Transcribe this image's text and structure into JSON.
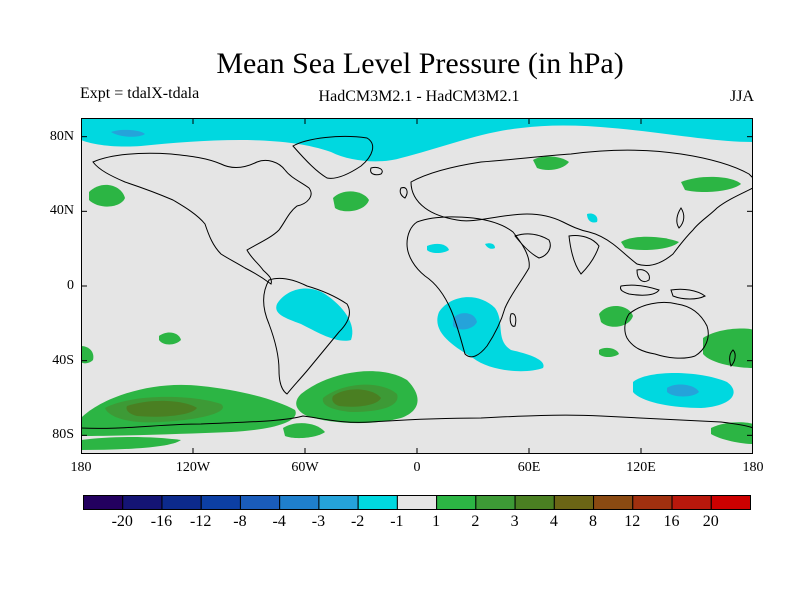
{
  "title": "Mean Sea Level Pressure (in hPa)",
  "expt_label": "Expt = tdalX-tdala",
  "model_label": "HadCM3M2.1 - HadCM3M2.1",
  "season_label": "JJA",
  "lat_ticks": [
    {
      "label": "80N",
      "lat": 80
    },
    {
      "label": "40N",
      "lat": 40
    },
    {
      "label": "0",
      "lat": 0
    },
    {
      "label": "40S",
      "lat": -40
    },
    {
      "label": "80S",
      "lat": -80
    }
  ],
  "lon_ticks": [
    {
      "label": "180",
      "lon": -180
    },
    {
      "label": "120W",
      "lon": -120
    },
    {
      "label": "60W",
      "lon": -60
    },
    {
      "label": "0",
      "lon": 0
    },
    {
      "label": "60E",
      "lon": 60
    },
    {
      "label": "120E",
      "lon": 120
    },
    {
      "label": "180",
      "lon": 180
    }
  ],
  "colorbar": {
    "colors": [
      "#23005f",
      "#141474",
      "#0c2a8c",
      "#0c3fa4",
      "#1a5cba",
      "#1f7fcc",
      "#25a3da",
      "#00d8e0",
      "#e5e5e5",
      "#2cb544",
      "#3d9a36",
      "#4a7f22",
      "#6b6515",
      "#8a4a12",
      "#a0300f",
      "#b8180c",
      "#cc0000"
    ],
    "labels": [
      "-20",
      "-16",
      "-12",
      "-8",
      "-4",
      "-3",
      "-2",
      "-1",
      "1",
      "2",
      "3",
      "4",
      "8",
      "12",
      "16",
      "20"
    ]
  },
  "palette": {
    "background": "#e5e5e5",
    "neg1": "#00d8e0",
    "neg2": "#25a3da",
    "pos1": "#2cb544",
    "pos2": "#3d9a36",
    "pos3": "#4a7f22",
    "coast": "#000000"
  }
}
